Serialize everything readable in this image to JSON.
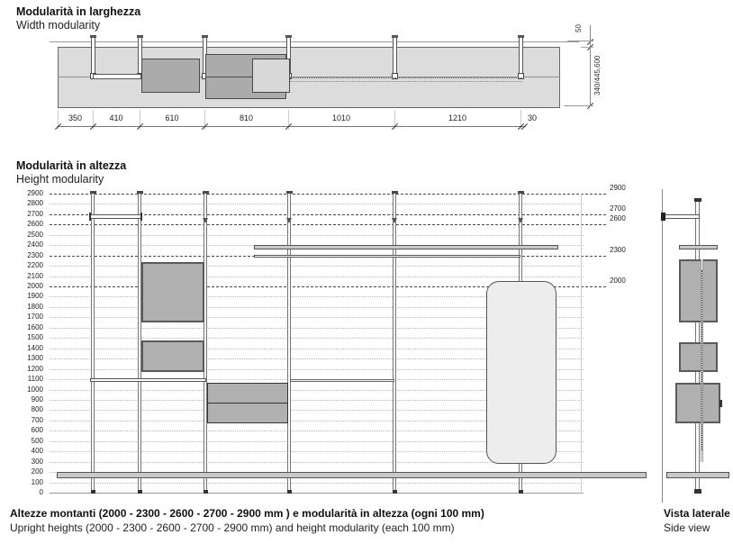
{
  "width_section": {
    "title_it": "Modularità in larghezza",
    "title_en": "Width modularity",
    "dim_labels": [
      "350",
      "410",
      "610",
      "810",
      "1010",
      "1210",
      "30"
    ],
    "gap_dim": "50",
    "depth_dim": "340/445,600"
  },
  "height_section": {
    "title_it": "Modularità in altezza",
    "title_en": "Height modularity",
    "scale_labels": [
      "2900",
      "2800",
      "2700",
      "2600",
      "2500",
      "2400",
      "2300",
      "2200",
      "2100",
      "2000",
      "1900",
      "1800",
      "1700",
      "1600",
      "1500",
      "1400",
      "1300",
      "1200",
      "1100",
      "1000",
      "900",
      "800",
      "700",
      "600",
      "500",
      "400",
      "300",
      "200",
      "100",
      "0"
    ],
    "level_callouts": [
      "2900",
      "2700",
      "2600",
      "2300",
      "2000"
    ]
  },
  "side_view": {
    "title_it": "Vista laterale",
    "title_en": "Side view"
  },
  "caption": {
    "it": "Altezze montanti (2000 - 2300 - 2600 - 2700 - 2900 mm ) e modularità in altezza (ogni 100 mm)",
    "en": "Upright heights (2000 - 2300 - 2600 - 2700 - 2900 mm) and height modularity (each 100 mm)"
  },
  "colors": {
    "outline": "#555555",
    "fill_light": "#dcdcdc",
    "fill_mid": "#ababab",
    "fill_shelf": "#c9c9c9",
    "text": "#1a1a1a"
  }
}
